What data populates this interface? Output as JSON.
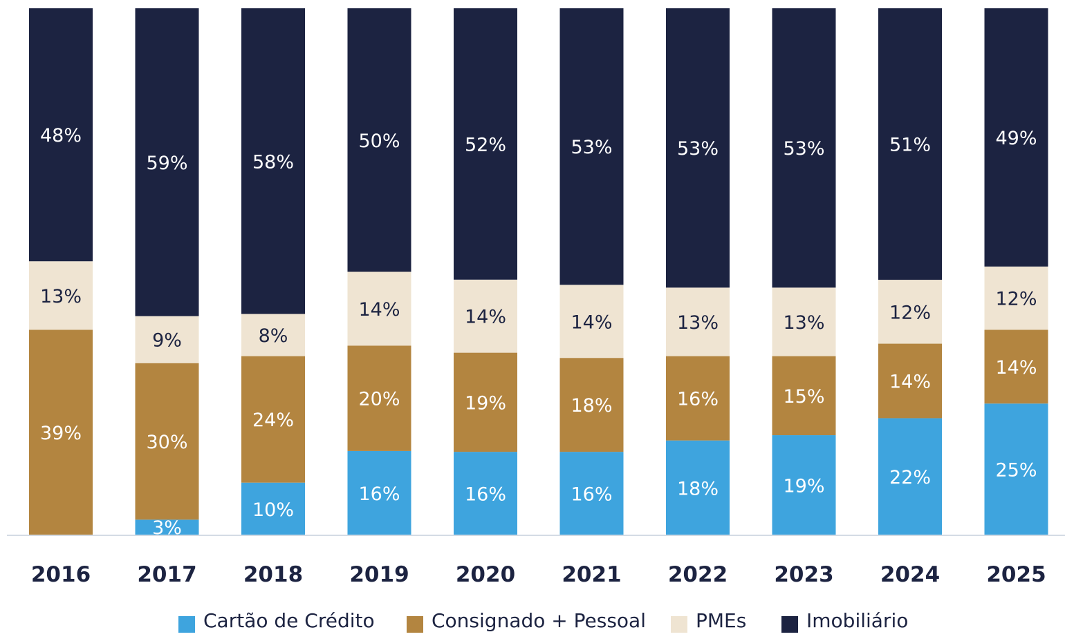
{
  "chart_data": {
    "type": "bar",
    "stacked": true,
    "categories": [
      "2016",
      "2017",
      "2018",
      "2019",
      "2020",
      "2021",
      "2022",
      "2023",
      "2024",
      "2025"
    ],
    "series": [
      {
        "name": "Cartão de Crédito",
        "color": "#3ea4de",
        "values": [
          0,
          3,
          10,
          16,
          16,
          16,
          18,
          19,
          22,
          25
        ],
        "labels": [
          "",
          "3%",
          "10%",
          "16%",
          "16%",
          "16%",
          "18%",
          "19%",
          "22%",
          "25%"
        ]
      },
      {
        "name": "Consignado + Pessoal",
        "color": "#b38540",
        "values": [
          39,
          30,
          24,
          20,
          19,
          18,
          16,
          15,
          14,
          14
        ],
        "labels": [
          "39%",
          "30%",
          "24%",
          "20%",
          "19%",
          "18%",
          "16%",
          "15%",
          "14%",
          "14%"
        ]
      },
      {
        "name": "PMEs",
        "color": "#efe4d2",
        "values": [
          13,
          9,
          8,
          14,
          14,
          14,
          13,
          13,
          12,
          12
        ],
        "labels": [
          "13%",
          "9%",
          "8%",
          "14%",
          "14%",
          "14%",
          "13%",
          "13%",
          "12%",
          "12%"
        ]
      },
      {
        "name": "Imobiliário",
        "color": "#1c2341",
        "values": [
          48,
          59,
          58,
          50,
          52,
          53,
          53,
          53,
          51,
          49
        ],
        "labels": [
          "48%",
          "59%",
          "58%",
          "50%",
          "52%",
          "53%",
          "53%",
          "53%",
          "51%",
          "49%"
        ]
      }
    ],
    "ylim": [
      0,
      100
    ],
    "unit": "%",
    "legend_position": "bottom",
    "grid": false
  }
}
